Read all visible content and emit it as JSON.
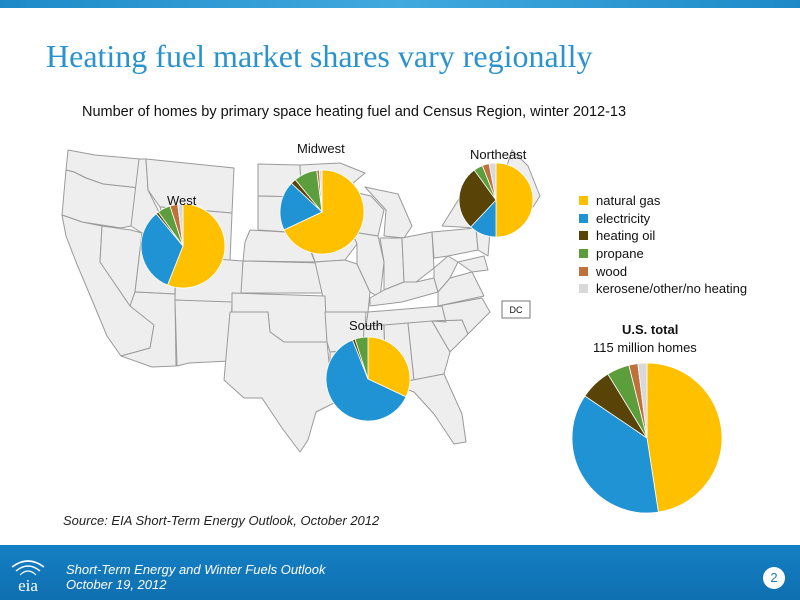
{
  "slide": {
    "title": "Heating fuel market shares vary regionally",
    "subtitle": "Number of homes by primary space heating fuel and Census Region, winter 2012-13",
    "source": "Source:  EIA Short-Term Energy Outlook, October 2012",
    "footer_line1": "Short-Term Energy and Winter Fuels Outlook",
    "footer_line2": "October 19, 2012",
    "logo_text": "eia",
    "page_number": "2",
    "map_label_dc": "DC",
    "total_title": "U.S. total",
    "total_subtitle": "115 million homes"
  },
  "colors": {
    "natural gas": "#ffc000",
    "electricity": "#1f93d3",
    "heating oil": "#5a4307",
    "propane": "#5d9e3c",
    "wood": "#c0703a",
    "kerosene/other/no heating": "#d9d9d9",
    "brand": "#2a93cf"
  },
  "chart_data": {
    "type": "pie",
    "units": "percent of homes",
    "legend_position": "right",
    "categories": [
      "natural gas",
      "electricity",
      "heating oil",
      "propane",
      "wood",
      "kerosene/other/no heating"
    ],
    "legend": [
      "natural gas",
      "electricity",
      "heating oil",
      "propane",
      "wood",
      "kerosene/other/no heating"
    ],
    "series": [
      {
        "name": "West",
        "values": [
          56,
          33,
          1,
          5,
          3,
          2
        ]
      },
      {
        "name": "Midwest",
        "values": [
          68,
          19,
          2,
          9,
          1,
          1
        ]
      },
      {
        "name": "Northeast",
        "values": [
          50,
          12,
          28,
          4,
          3,
          3
        ]
      },
      {
        "name": "South",
        "values": [
          32,
          62,
          1,
          5,
          0,
          0
        ]
      },
      {
        "name": "U.S. total",
        "values": [
          49,
          38,
          7,
          5,
          2,
          2
        ]
      }
    ]
  }
}
